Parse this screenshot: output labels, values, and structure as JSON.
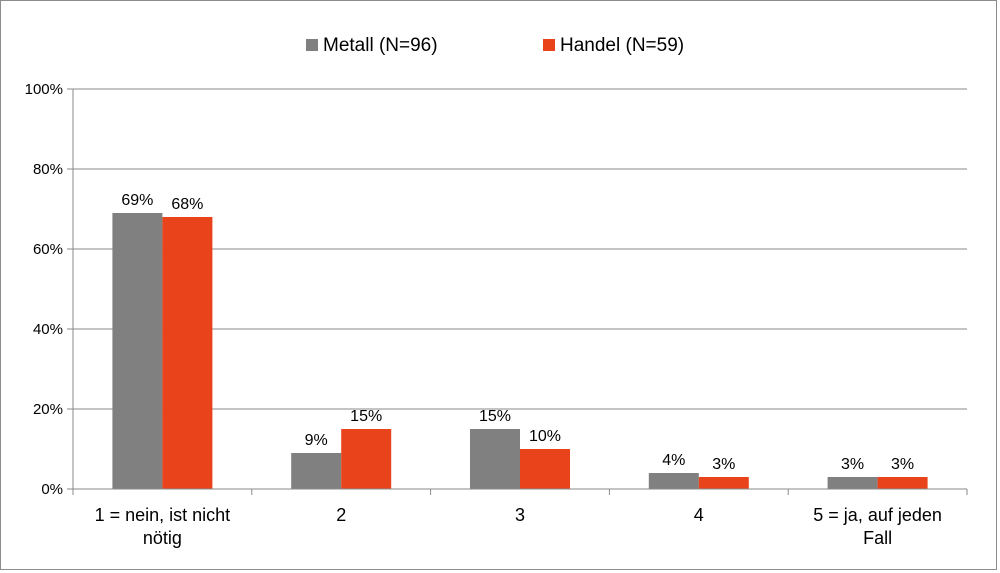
{
  "chart_data": {
    "type": "bar",
    "title": "",
    "xlabel": "",
    "ylabel": "",
    "ylim": [
      0,
      100
    ],
    "yticks": [
      "0%",
      "20%",
      "40%",
      "60%",
      "80%",
      "100%"
    ],
    "ytick_values": [
      0,
      20,
      40,
      60,
      80,
      100
    ],
    "grid": true,
    "legend_position": "top",
    "categories": [
      [
        "1 = nein, ist nicht",
        "nötig"
      ],
      [
        "2"
      ],
      [
        "3"
      ],
      [
        "4"
      ],
      [
        "5 = ja, auf jeden",
        "Fall"
      ]
    ],
    "series": [
      {
        "name": "Metall (N=96)",
        "color": "#808080",
        "values": [
          69,
          9,
          15,
          4,
          3
        ],
        "labels": [
          "69%",
          "9%",
          "15%",
          "4%",
          "3%"
        ]
      },
      {
        "name": "Handel (N=59)",
        "color": "#e8431a",
        "values": [
          68,
          15,
          10,
          3,
          3
        ],
        "labels": [
          "68%",
          "15%",
          "10%",
          "3%",
          "3%"
        ]
      }
    ]
  }
}
